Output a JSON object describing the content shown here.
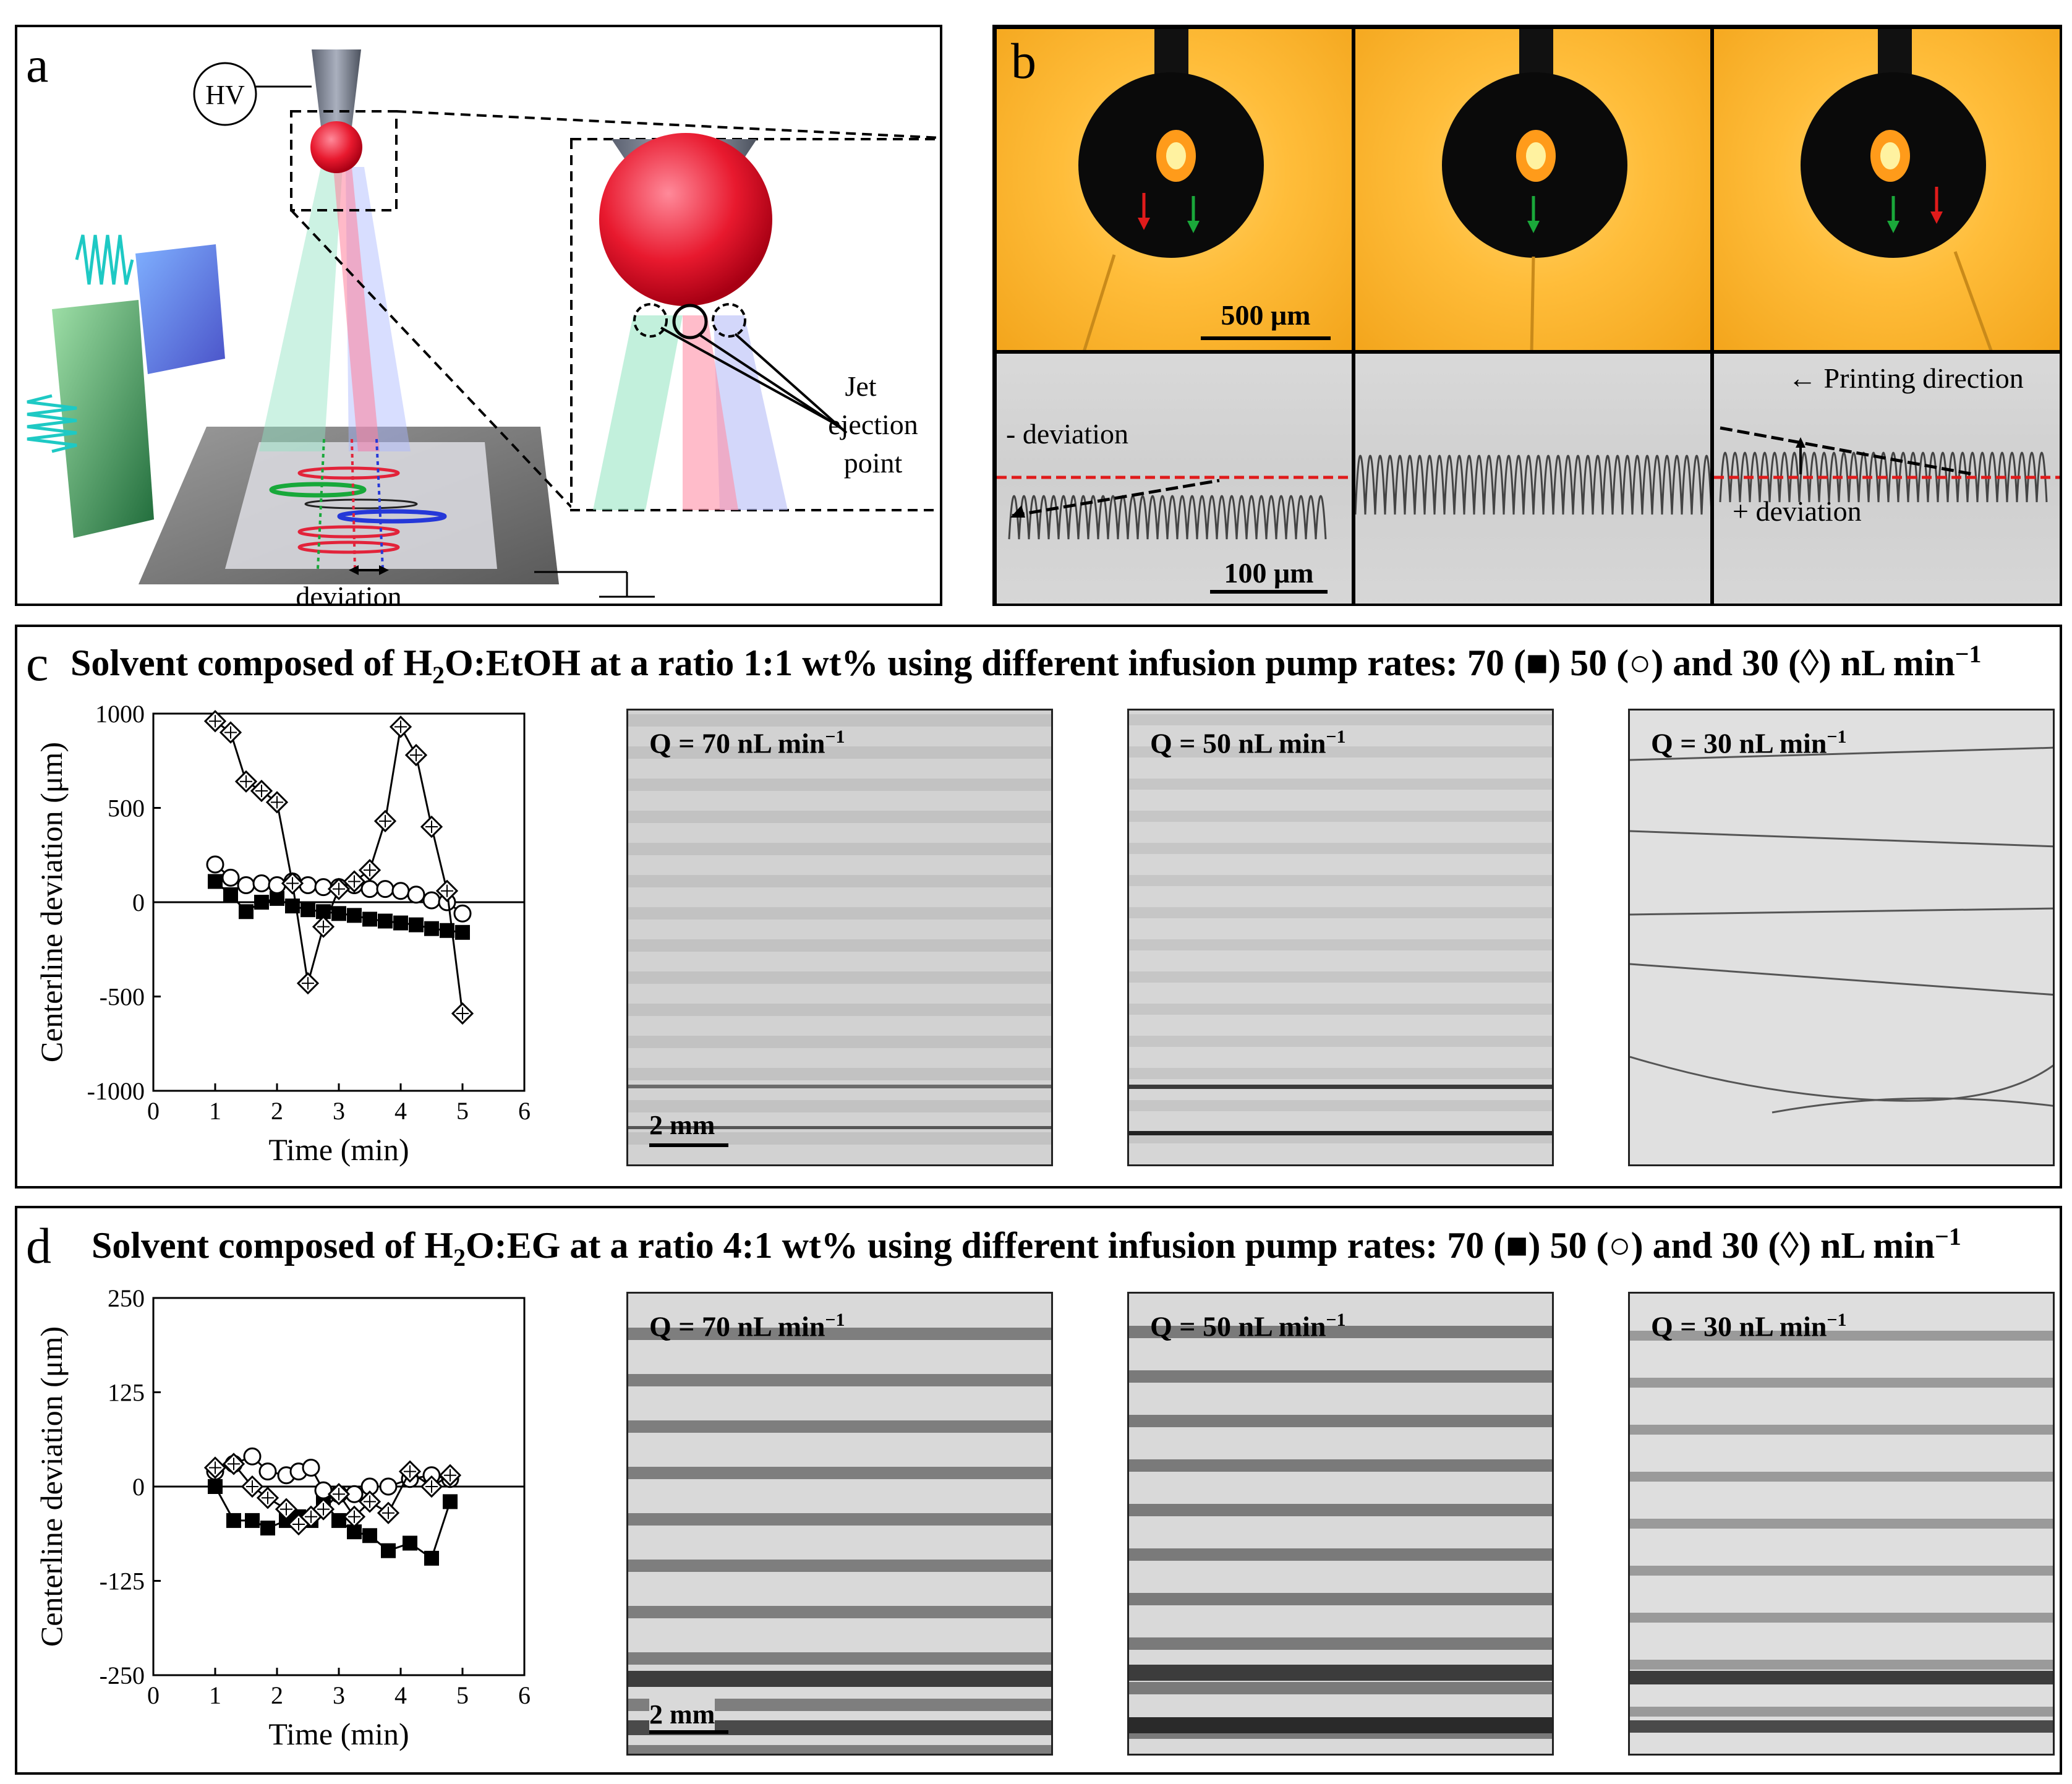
{
  "panel_a": {
    "label": "a",
    "hv_label": "HV",
    "jet_label_1": "Jet",
    "jet_label_2": "ejection",
    "jet_label_3": "point",
    "deviation_label": "deviation"
  },
  "panel_b": {
    "label": "b",
    "scale_top": "500 μm",
    "scale_bottom": "100 μm",
    "neg_deviation": "- deviation",
    "pos_deviation": "+ deviation",
    "printing_direction": "← Printing direction"
  },
  "panel_c": {
    "label": "c",
    "title_pre": "Solvent composed of H",
    "title_sub": "2",
    "title_post": "O:EtOH at a ratio 1:1 wt% using different infusion pump rates: 70 (■) 50 (○) and 30 (◊) nL min",
    "title_sup": "−1",
    "q_labels": [
      "Q = 70 nL min",
      "Q = 50 nL min",
      "Q = 30 nL min"
    ],
    "q_sup": "−1",
    "scale": "2 mm"
  },
  "panel_d": {
    "label": "d",
    "title_pre": "Solvent composed of H",
    "title_sub": "2",
    "title_post": "O:EG at a ratio 4:1 wt% using different infusion pump rates: 70 (■) 50 (○) and 30 (◊) nL min",
    "title_sup": "−1",
    "q_labels": [
      "Q = 70 nL min",
      "Q = 50 nL min",
      "Q = 30 nL min"
    ],
    "q_sup": "−1",
    "scale": "2 mm"
  },
  "chart_data": [
    {
      "type": "scatter",
      "xlabel": "Time (min)",
      "ylabel": "Centerline deviation (μm)",
      "xlim": [
        0,
        6
      ],
      "ylim": [
        -1000,
        1000
      ],
      "xticks": [
        0,
        1,
        2,
        3,
        4,
        5,
        6
      ],
      "yticks": [
        1000,
        500,
        0,
        -500,
        -1000
      ],
      "series": [
        {
          "marker": "square",
          "x": [
            1.0,
            1.25,
            1.5,
            1.75,
            2.0,
            2.25,
            2.5,
            2.75,
            3.0,
            3.25,
            3.5,
            3.75,
            4.0,
            4.25,
            4.5,
            4.75,
            5.0
          ],
          "y": [
            110,
            40,
            -50,
            0,
            20,
            -20,
            -40,
            -50,
            -60,
            -70,
            -90,
            -100,
            -110,
            -120,
            -140,
            -150,
            -160
          ]
        },
        {
          "marker": "circle",
          "x": [
            1.0,
            1.25,
            1.5,
            1.75,
            2.0,
            2.25,
            2.5,
            2.75,
            3.0,
            3.25,
            3.5,
            3.75,
            4.0,
            4.25,
            4.5,
            4.75,
            5.0
          ],
          "y": [
            200,
            130,
            90,
            100,
            90,
            110,
            90,
            80,
            80,
            90,
            70,
            70,
            60,
            40,
            10,
            0,
            -60
          ]
        },
        {
          "marker": "diamond",
          "x": [
            1.0,
            1.25,
            1.5,
            1.75,
            2.0,
            2.25,
            2.5,
            2.75,
            3.0,
            3.25,
            3.5,
            3.75,
            4.0,
            4.25,
            4.5,
            4.75,
            5.0
          ],
          "y": [
            960,
            900,
            640,
            590,
            530,
            100,
            -430,
            -130,
            70,
            110,
            170,
            430,
            930,
            780,
            400,
            60,
            -590
          ]
        }
      ]
    },
    {
      "type": "scatter",
      "xlabel": "Time (min)",
      "ylabel": "Centerline deviation (μm)",
      "xlim": [
        0,
        6
      ],
      "ylim": [
        -250,
        250
      ],
      "xticks": [
        0,
        1,
        2,
        3,
        4,
        5,
        6
      ],
      "yticks": [
        250,
        125,
        0,
        -125,
        -250
      ],
      "series": [
        {
          "marker": "square",
          "x": [
            1.0,
            1.3,
            1.6,
            1.85,
            2.15,
            2.35,
            2.55,
            2.75,
            3.0,
            3.25,
            3.5,
            3.8,
            4.15,
            4.5,
            4.8
          ],
          "y": [
            0,
            -45,
            -45,
            -55,
            -45,
            -40,
            -45,
            -20,
            -45,
            -60,
            -65,
            -85,
            -75,
            -95,
            -20
          ]
        },
        {
          "marker": "circle",
          "x": [
            1.0,
            1.3,
            1.6,
            1.85,
            2.15,
            2.35,
            2.55,
            2.75,
            3.0,
            3.25,
            3.5,
            3.8,
            4.15,
            4.5,
            4.8
          ],
          "y": [
            20,
            30,
            40,
            20,
            15,
            20,
            25,
            -5,
            -10,
            -10,
            0,
            0,
            10,
            15,
            10
          ]
        },
        {
          "marker": "diamond",
          "x": [
            1.0,
            1.3,
            1.6,
            1.85,
            2.15,
            2.35,
            2.55,
            2.75,
            3.0,
            3.25,
            3.5,
            3.8,
            4.15,
            4.5,
            4.8
          ],
          "y": [
            25,
            30,
            0,
            -15,
            -30,
            -50,
            -40,
            -30,
            -10,
            -40,
            -20,
            -35,
            20,
            0,
            15
          ]
        }
      ]
    }
  ]
}
